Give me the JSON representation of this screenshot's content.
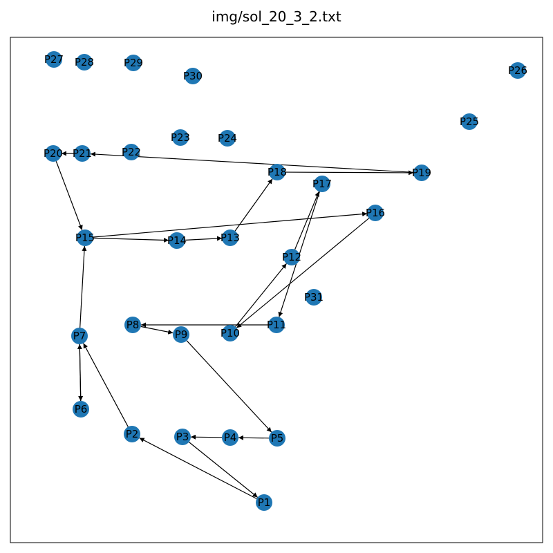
{
  "title": "img/sol_20_3_2.txt",
  "colors": {
    "node_fill": "#1f77b4",
    "edge": "#000000",
    "frame": "#000000",
    "background": "#ffffff"
  },
  "nodes": [
    "P1",
    "P2",
    "P3",
    "P4",
    "P5",
    "P6",
    "P7",
    "P8",
    "P9",
    "P10",
    "P11",
    "P12",
    "P13",
    "P14",
    "P15",
    "P16",
    "P17",
    "P18",
    "P19",
    "P20",
    "P21",
    "P22",
    "P23",
    "P24",
    "P25",
    "P26",
    "P27",
    "P28",
    "P29",
    "P30",
    "P31"
  ],
  "edges": [
    [
      "P1",
      "P2"
    ],
    [
      "P3",
      "P1"
    ],
    [
      "P2",
      "P7"
    ],
    [
      "P5",
      "P4"
    ],
    [
      "P4",
      "P3"
    ],
    [
      "P7",
      "P6"
    ],
    [
      "P6",
      "P7"
    ],
    [
      "P7",
      "P15"
    ],
    [
      "P8",
      "P9"
    ],
    [
      "P9",
      "P5"
    ],
    [
      "P11",
      "P8"
    ],
    [
      "P10",
      "P12"
    ],
    [
      "P12",
      "P17"
    ],
    [
      "P17",
      "P11"
    ],
    [
      "P16",
      "P10"
    ],
    [
      "P15",
      "P14"
    ],
    [
      "P14",
      "P13"
    ],
    [
      "P13",
      "P18"
    ],
    [
      "P18",
      "P19"
    ],
    [
      "P19",
      "P21"
    ],
    [
      "P21",
      "P20"
    ],
    [
      "P20",
      "P15"
    ],
    [
      "P15",
      "P16"
    ]
  ]
}
